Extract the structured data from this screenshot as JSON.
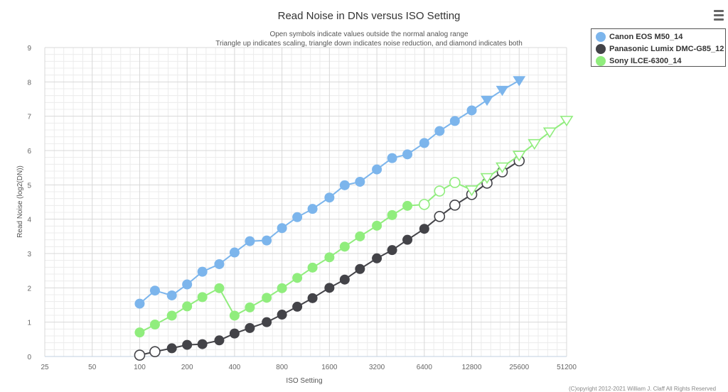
{
  "menu": {
    "icon": "hamburger-menu-icon"
  },
  "legend": {
    "items": [
      {
        "label": "Canon EOS M50_14",
        "color": "#7cb5ec"
      },
      {
        "label": "Panasonic Lumix DMC-G85_12",
        "color": "#434348"
      },
      {
        "label": "Sony ILCE-6300_14",
        "color": "#90ed7d"
      }
    ]
  },
  "copyright": "(C)opyright 2012-2021 William J. Claff All Rights Reserved",
  "chart_data": {
    "type": "line",
    "title": "Read Noise in DNs versus ISO Setting",
    "subtitle_lines": [
      "Open symbols indicate values outside the normal analog range",
      "Triangle up indicates scaling, triangle down indicates noise reduction, and diamond indicates both"
    ],
    "xlabel": "ISO Setting",
    "ylabel": "Read Noise (log2(DN))",
    "x_scale": "log2",
    "xlim": [
      25,
      51200
    ],
    "ylim": [
      0,
      9
    ],
    "x_ticks": [
      25,
      50,
      100,
      200,
      400,
      800,
      1600,
      3200,
      6400,
      12800,
      25600,
      51200
    ],
    "x_tick_labels": [
      "25",
      "50",
      "100",
      "200",
      "400",
      "800",
      "1600",
      "3200",
      "6400",
      "12800",
      "25600",
      "51200"
    ],
    "y_ticks": [
      0,
      1,
      2,
      3,
      4,
      5,
      6,
      7,
      8,
      9
    ],
    "y_tick_labels": [
      "0",
      "1",
      "2",
      "3",
      "4",
      "5",
      "6",
      "7",
      "8",
      "9"
    ],
    "series": [
      {
        "name": "Canon EOS M50_14",
        "color": "#7cb5ec",
        "x": [
          100,
          125,
          160,
          200,
          250,
          320,
          400,
          500,
          640,
          800,
          1000,
          1250,
          1600,
          2000,
          2500,
          3200,
          4000,
          5000,
          6400,
          8000,
          10000,
          12800,
          16000,
          20000,
          25600
        ],
        "y": [
          1.54,
          1.92,
          1.78,
          2.1,
          2.47,
          2.69,
          3.03,
          3.36,
          3.38,
          3.74,
          4.06,
          4.3,
          4.63,
          4.99,
          5.09,
          5.45,
          5.78,
          5.89,
          6.22,
          6.57,
          6.86,
          7.17,
          7.47,
          7.76,
          8.04
        ],
        "markers": [
          "circle",
          "circle",
          "circle",
          "circle",
          "circle",
          "circle",
          "circle",
          "circle",
          "circle",
          "circle",
          "circle",
          "circle",
          "circle",
          "circle",
          "circle",
          "circle",
          "circle",
          "circle",
          "circle",
          "circle",
          "circle",
          "circle",
          "triangle-down",
          "triangle-down",
          "triangle-down"
        ],
        "open": [
          false,
          false,
          false,
          false,
          false,
          false,
          false,
          false,
          false,
          false,
          false,
          false,
          false,
          false,
          false,
          false,
          false,
          false,
          false,
          false,
          false,
          false,
          false,
          false,
          false
        ]
      },
      {
        "name": "Panasonic Lumix DMC-G85_12",
        "color": "#434348",
        "x": [
          100,
          125,
          160,
          200,
          250,
          320,
          400,
          500,
          640,
          800,
          1000,
          1250,
          1600,
          2000,
          2500,
          3200,
          4000,
          5000,
          6400,
          8000,
          10000,
          12800,
          16000,
          20000,
          25600
        ],
        "y": [
          0.04,
          0.14,
          0.24,
          0.34,
          0.36,
          0.47,
          0.67,
          0.83,
          1.0,
          1.22,
          1.45,
          1.7,
          2.0,
          2.24,
          2.55,
          2.86,
          3.1,
          3.4,
          3.72,
          4.08,
          4.41,
          4.72,
          5.05,
          5.38,
          5.7
        ],
        "markers": [
          "circle",
          "circle",
          "circle",
          "circle",
          "circle",
          "circle",
          "circle",
          "circle",
          "circle",
          "circle",
          "circle",
          "circle",
          "circle",
          "circle",
          "circle",
          "circle",
          "circle",
          "circle",
          "circle",
          "circle",
          "circle",
          "circle",
          "circle",
          "circle",
          "circle"
        ],
        "open": [
          true,
          true,
          false,
          false,
          false,
          false,
          false,
          false,
          false,
          false,
          false,
          false,
          false,
          false,
          false,
          false,
          false,
          false,
          false,
          true,
          true,
          true,
          true,
          true,
          true
        ]
      },
      {
        "name": "Sony ILCE-6300_14",
        "color": "#90ed7d",
        "x": [
          100,
          125,
          160,
          200,
          250,
          320,
          400,
          500,
          640,
          800,
          1000,
          1250,
          1600,
          2000,
          2500,
          3200,
          4000,
          5000,
          6400,
          8000,
          10000,
          12800,
          16000,
          20000,
          25600,
          32000,
          40000,
          51200
        ],
        "y": [
          0.7,
          0.93,
          1.19,
          1.46,
          1.73,
          1.99,
          1.19,
          1.43,
          1.71,
          1.99,
          2.29,
          2.59,
          2.89,
          3.2,
          3.5,
          3.81,
          4.12,
          4.39,
          4.43,
          4.82,
          5.07,
          4.85,
          5.21,
          5.52,
          5.86,
          6.2,
          6.54,
          6.88
        ],
        "markers": [
          "circle",
          "circle",
          "circle",
          "circle",
          "circle",
          "circle",
          "circle",
          "circle",
          "circle",
          "circle",
          "circle",
          "circle",
          "circle",
          "circle",
          "circle",
          "circle",
          "circle",
          "circle",
          "circle",
          "circle",
          "circle",
          "triangle-down",
          "triangle-down",
          "triangle-down",
          "triangle-down",
          "triangle-down",
          "triangle-down",
          "triangle-down"
        ],
        "open": [
          false,
          false,
          false,
          false,
          false,
          false,
          false,
          false,
          false,
          false,
          false,
          false,
          false,
          false,
          false,
          false,
          false,
          false,
          true,
          true,
          true,
          true,
          true,
          true,
          true,
          true,
          true,
          true
        ]
      }
    ]
  }
}
